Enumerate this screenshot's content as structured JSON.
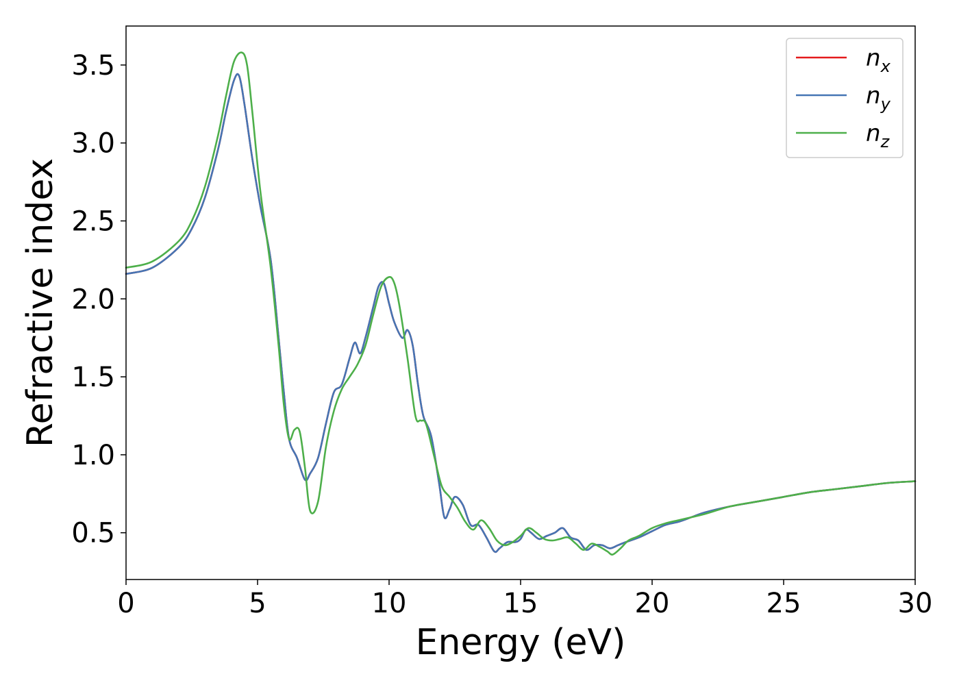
{
  "chart_data": {
    "type": "line",
    "title": "",
    "xlabel": "Energy (eV)",
    "ylabel": "Refractive index",
    "xlim": [
      0,
      30
    ],
    "ylim": [
      0.2,
      3.75
    ],
    "x_ticks": [
      0,
      5,
      10,
      15,
      20,
      25,
      30
    ],
    "x_tick_labels": [
      "0",
      "5",
      "10",
      "15",
      "20",
      "25",
      "30"
    ],
    "y_ticks": [
      0.5,
      1.0,
      1.5,
      2.0,
      2.5,
      3.0,
      3.5
    ],
    "y_tick_labels": [
      "0.5",
      "1.0",
      "1.5",
      "2.0",
      "2.5",
      "3.0",
      "3.5"
    ],
    "grid": false,
    "legend_position": "top-right",
    "series": [
      {
        "name": "n",
        "subscript": "x",
        "color": "#e41a1c",
        "x": [
          0,
          1,
          2,
          2.5,
          3,
          3.5,
          3.8,
          4.1,
          4.3,
          4.5,
          4.8,
          5.1,
          5.5,
          5.8,
          6.0,
          6.2,
          6.5,
          6.8,
          7.0,
          7.3,
          7.6,
          7.9,
          8.2,
          8.5,
          8.7,
          8.9,
          9.1,
          9.4,
          9.6,
          9.8,
          10.0,
          10.2,
          10.5,
          10.7,
          10.9,
          11.1,
          11.3,
          11.6,
          11.9,
          12.1,
          12.3,
          12.5,
          12.8,
          13.1,
          13.4,
          13.7,
          14.0,
          14.2,
          14.5,
          14.8,
          15.0,
          15.2,
          15.4,
          15.7,
          16.0,
          16.3,
          16.6,
          16.9,
          17.2,
          17.5,
          17.8,
          18.1,
          18.4,
          18.7,
          19.0,
          19.5,
          20.0,
          20.5,
          21.0,
          21.5,
          22.0,
          23.0,
          24.0,
          25.0,
          26.0,
          27.0,
          28.0,
          29.0,
          30.0
        ],
        "y": [
          2.16,
          2.2,
          2.33,
          2.45,
          2.65,
          2.96,
          3.2,
          3.4,
          3.43,
          3.25,
          2.9,
          2.6,
          2.25,
          1.75,
          1.4,
          1.1,
          0.98,
          0.84,
          0.88,
          0.98,
          1.2,
          1.4,
          1.45,
          1.62,
          1.72,
          1.65,
          1.75,
          1.95,
          2.08,
          2.1,
          1.97,
          1.85,
          1.75,
          1.8,
          1.7,
          1.45,
          1.25,
          1.12,
          0.82,
          0.6,
          0.65,
          0.73,
          0.68,
          0.55,
          0.55,
          0.47,
          0.38,
          0.4,
          0.44,
          0.44,
          0.46,
          0.52,
          0.5,
          0.46,
          0.48,
          0.5,
          0.53,
          0.47,
          0.45,
          0.39,
          0.42,
          0.42,
          0.4,
          0.42,
          0.44,
          0.47,
          0.51,
          0.55,
          0.57,
          0.6,
          0.63,
          0.67,
          0.7,
          0.73,
          0.76,
          0.78,
          0.8,
          0.82,
          0.83
        ]
      },
      {
        "name": "n",
        "subscript": "y",
        "color": "#4575b4",
        "x": [
          0,
          1,
          2,
          2.5,
          3,
          3.5,
          3.8,
          4.1,
          4.3,
          4.5,
          4.8,
          5.1,
          5.5,
          5.8,
          6.0,
          6.2,
          6.5,
          6.8,
          7.0,
          7.3,
          7.6,
          7.9,
          8.2,
          8.5,
          8.7,
          8.9,
          9.1,
          9.4,
          9.6,
          9.8,
          10.0,
          10.2,
          10.5,
          10.7,
          10.9,
          11.1,
          11.3,
          11.6,
          11.9,
          12.1,
          12.3,
          12.5,
          12.8,
          13.1,
          13.4,
          13.7,
          14.0,
          14.2,
          14.5,
          14.8,
          15.0,
          15.2,
          15.4,
          15.7,
          16.0,
          16.3,
          16.6,
          16.9,
          17.2,
          17.5,
          17.8,
          18.1,
          18.4,
          18.7,
          19.0,
          19.5,
          20.0,
          20.5,
          21.0,
          21.5,
          22.0,
          23.0,
          24.0,
          25.0,
          26.0,
          27.0,
          28.0,
          29.0,
          30.0
        ],
        "y": [
          2.16,
          2.2,
          2.33,
          2.45,
          2.65,
          2.96,
          3.2,
          3.4,
          3.43,
          3.25,
          2.9,
          2.6,
          2.25,
          1.75,
          1.4,
          1.1,
          0.98,
          0.84,
          0.88,
          0.98,
          1.2,
          1.4,
          1.45,
          1.62,
          1.72,
          1.65,
          1.75,
          1.95,
          2.08,
          2.1,
          1.97,
          1.85,
          1.75,
          1.8,
          1.7,
          1.45,
          1.25,
          1.12,
          0.82,
          0.6,
          0.65,
          0.73,
          0.68,
          0.55,
          0.55,
          0.47,
          0.38,
          0.4,
          0.44,
          0.44,
          0.46,
          0.52,
          0.5,
          0.46,
          0.48,
          0.5,
          0.53,
          0.47,
          0.45,
          0.39,
          0.42,
          0.42,
          0.4,
          0.42,
          0.44,
          0.47,
          0.51,
          0.55,
          0.57,
          0.6,
          0.63,
          0.67,
          0.7,
          0.73,
          0.76,
          0.78,
          0.8,
          0.82,
          0.83
        ]
      },
      {
        "name": "n",
        "subscript": "z",
        "color": "#4daf4a",
        "x": [
          0,
          1,
          2,
          2.5,
          3,
          3.5,
          3.8,
          4.1,
          4.4,
          4.6,
          4.8,
          5.1,
          5.5,
          5.8,
          6.0,
          6.2,
          6.4,
          6.6,
          6.8,
          7.0,
          7.3,
          7.6,
          7.9,
          8.2,
          8.5,
          8.8,
          9.1,
          9.4,
          9.7,
          10.0,
          10.2,
          10.4,
          10.7,
          11.0,
          11.2,
          11.4,
          11.7,
          12.0,
          12.3,
          12.6,
          12.9,
          13.2,
          13.5,
          13.8,
          14.1,
          14.4,
          14.7,
          15.0,
          15.3,
          15.6,
          15.9,
          16.2,
          16.5,
          16.8,
          17.1,
          17.4,
          17.7,
          18.0,
          18.3,
          18.5,
          18.8,
          19.1,
          19.5,
          20.0,
          20.5,
          21.0,
          21.5,
          22.0,
          23.0,
          24.0,
          25.0,
          26.0,
          27.0,
          28.0,
          29.0,
          30.0
        ],
        "y": [
          2.2,
          2.24,
          2.37,
          2.5,
          2.72,
          3.05,
          3.3,
          3.52,
          3.58,
          3.5,
          3.2,
          2.7,
          2.2,
          1.7,
          1.32,
          1.1,
          1.16,
          1.15,
          0.92,
          0.64,
          0.7,
          1.05,
          1.28,
          1.42,
          1.5,
          1.58,
          1.7,
          1.9,
          2.08,
          2.14,
          2.1,
          1.95,
          1.62,
          1.25,
          1.22,
          1.2,
          1.0,
          0.8,
          0.73,
          0.66,
          0.57,
          0.52,
          0.58,
          0.53,
          0.45,
          0.42,
          0.44,
          0.48,
          0.53,
          0.5,
          0.46,
          0.45,
          0.46,
          0.47,
          0.43,
          0.39,
          0.43,
          0.41,
          0.38,
          0.36,
          0.4,
          0.45,
          0.48,
          0.53,
          0.56,
          0.58,
          0.6,
          0.62,
          0.67,
          0.7,
          0.73,
          0.76,
          0.78,
          0.8,
          0.82,
          0.83
        ]
      }
    ]
  }
}
